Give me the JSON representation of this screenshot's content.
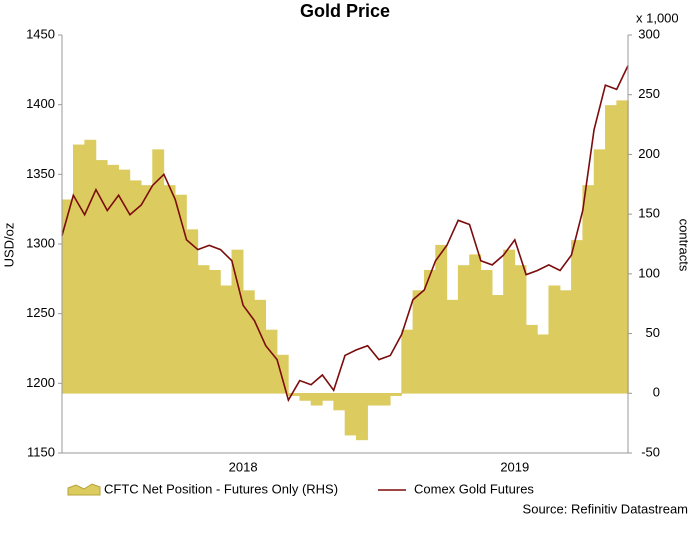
{
  "chart_data": {
    "type": "step-area-line",
    "title": "Gold Price",
    "y_label": "USD/oz",
    "y2_label": "contracts",
    "y2_unit": "x 1,000",
    "source": "Source: Refinitiv Datastream",
    "categories": [
      null,
      null,
      null,
      null,
      null,
      null,
      null,
      null,
      null,
      null,
      null,
      null,
      null,
      null,
      null,
      null,
      "2018",
      null,
      null,
      null,
      null,
      null,
      null,
      null,
      null,
      null,
      null,
      null,
      null,
      null,
      null,
      null,
      null,
      null,
      null,
      null,
      null,
      null,
      null,
      null,
      "2019",
      null,
      null,
      null,
      null,
      null,
      null,
      null,
      null,
      null,
      null
    ],
    "ylim": [
      1150,
      1450
    ],
    "yticks": [
      1150,
      1200,
      1250,
      1300,
      1350,
      1400,
      1450
    ],
    "y2lim": [
      -50,
      300
    ],
    "y2ticks": [
      -50,
      0,
      50,
      100,
      150,
      200,
      250,
      300
    ],
    "legend": "bottom",
    "series": [
      {
        "name": "CFTC Net Position - Futures Only (RHS)",
        "color": "#dccb5f",
        "axis": "y2",
        "kind": "step-area",
        "values": [
          162,
          208,
          212,
          195,
          191,
          187,
          178,
          174,
          204,
          174,
          166,
          137,
          107,
          103,
          90,
          120,
          86,
          78,
          53,
          32,
          -2,
          -6,
          -10,
          -6,
          -14,
          -35,
          -39,
          -10,
          -10,
          -2,
          53,
          86,
          103,
          124,
          78,
          107,
          116,
          103,
          82,
          120,
          107,
          57,
          49,
          90,
          86,
          128,
          174,
          204,
          241,
          245,
          245
        ]
      },
      {
        "name": "Comex Gold Futures",
        "color": "#7b0c0c",
        "axis": "y",
        "kind": "line",
        "values": [
          1306,
          1335,
          1321,
          1339,
          1324,
          1335,
          1321,
          1328,
          1342,
          1350,
          1332,
          1303,
          1296,
          1299,
          1296,
          1288,
          1256,
          1245,
          1227,
          1217,
          1188,
          1202,
          1199,
          1206,
          1195,
          1220,
          1224,
          1227,
          1217,
          1220,
          1235,
          1260,
          1267,
          1288,
          1299,
          1317,
          1314,
          1288,
          1285,
          1292,
          1303,
          1278,
          1281,
          1285,
          1281,
          1292,
          1324,
          1382,
          1414,
          1411,
          1428
        ]
      }
    ]
  }
}
